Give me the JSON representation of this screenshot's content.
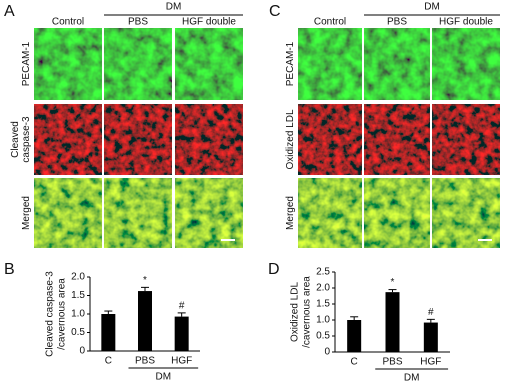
{
  "panels": [
    {
      "letter": "A",
      "group": "DM",
      "columns": [
        "Control",
        "PBS",
        "HGF double"
      ],
      "rows": [
        [
          "PECAM-1"
        ],
        [
          "Cleaved",
          "caspase-3"
        ],
        [
          "Merged"
        ]
      ]
    },
    {
      "letter": "C",
      "group": "DM",
      "columns": [
        "Control",
        "PBS",
        "HGF double"
      ],
      "rows": [
        [
          "PECAM-1"
        ],
        [
          "Oxidized LDL"
        ],
        [
          "Merged"
        ]
      ]
    }
  ],
  "chart_data": [
    {
      "type": "bar",
      "letter": "B",
      "ylabel": [
        "Cleaved caspase-3",
        "/cavernous area"
      ],
      "categories": [
        "C",
        "PBS",
        "HGF"
      ],
      "group_label": "DM",
      "values": [
        1.0,
        1.62,
        0.93
      ],
      "errors": [
        0.08,
        0.1,
        0.1
      ],
      "significance": [
        null,
        "*",
        "#"
      ],
      "color": "#000000",
      "ylim": [
        0,
        2.0
      ],
      "yticks": [
        0,
        0.5,
        {
          "value": 1.0,
          "label": "1.0"
        },
        1.5,
        {
          "value": 2.0,
          "label": "2.0"
        }
      ]
    },
    {
      "type": "bar",
      "letter": "D",
      "ylabel": [
        "Oxidized LDL",
        "/cavernous area"
      ],
      "categories": [
        "C",
        "PBS",
        "HGF"
      ],
      "group_label": "DM",
      "values": [
        1.0,
        1.87,
        0.92
      ],
      "errors": [
        0.1,
        0.08,
        0.1
      ],
      "significance": [
        null,
        "*",
        "#"
      ],
      "color": "#000000",
      "ylim": [
        0,
        2.5
      ],
      "yticks": [
        0,
        0.5,
        {
          "value": 1.0,
          "label": "1.0"
        },
        1.5,
        {
          "value": 2.0,
          "label": "2.0"
        },
        2.5
      ]
    }
  ]
}
